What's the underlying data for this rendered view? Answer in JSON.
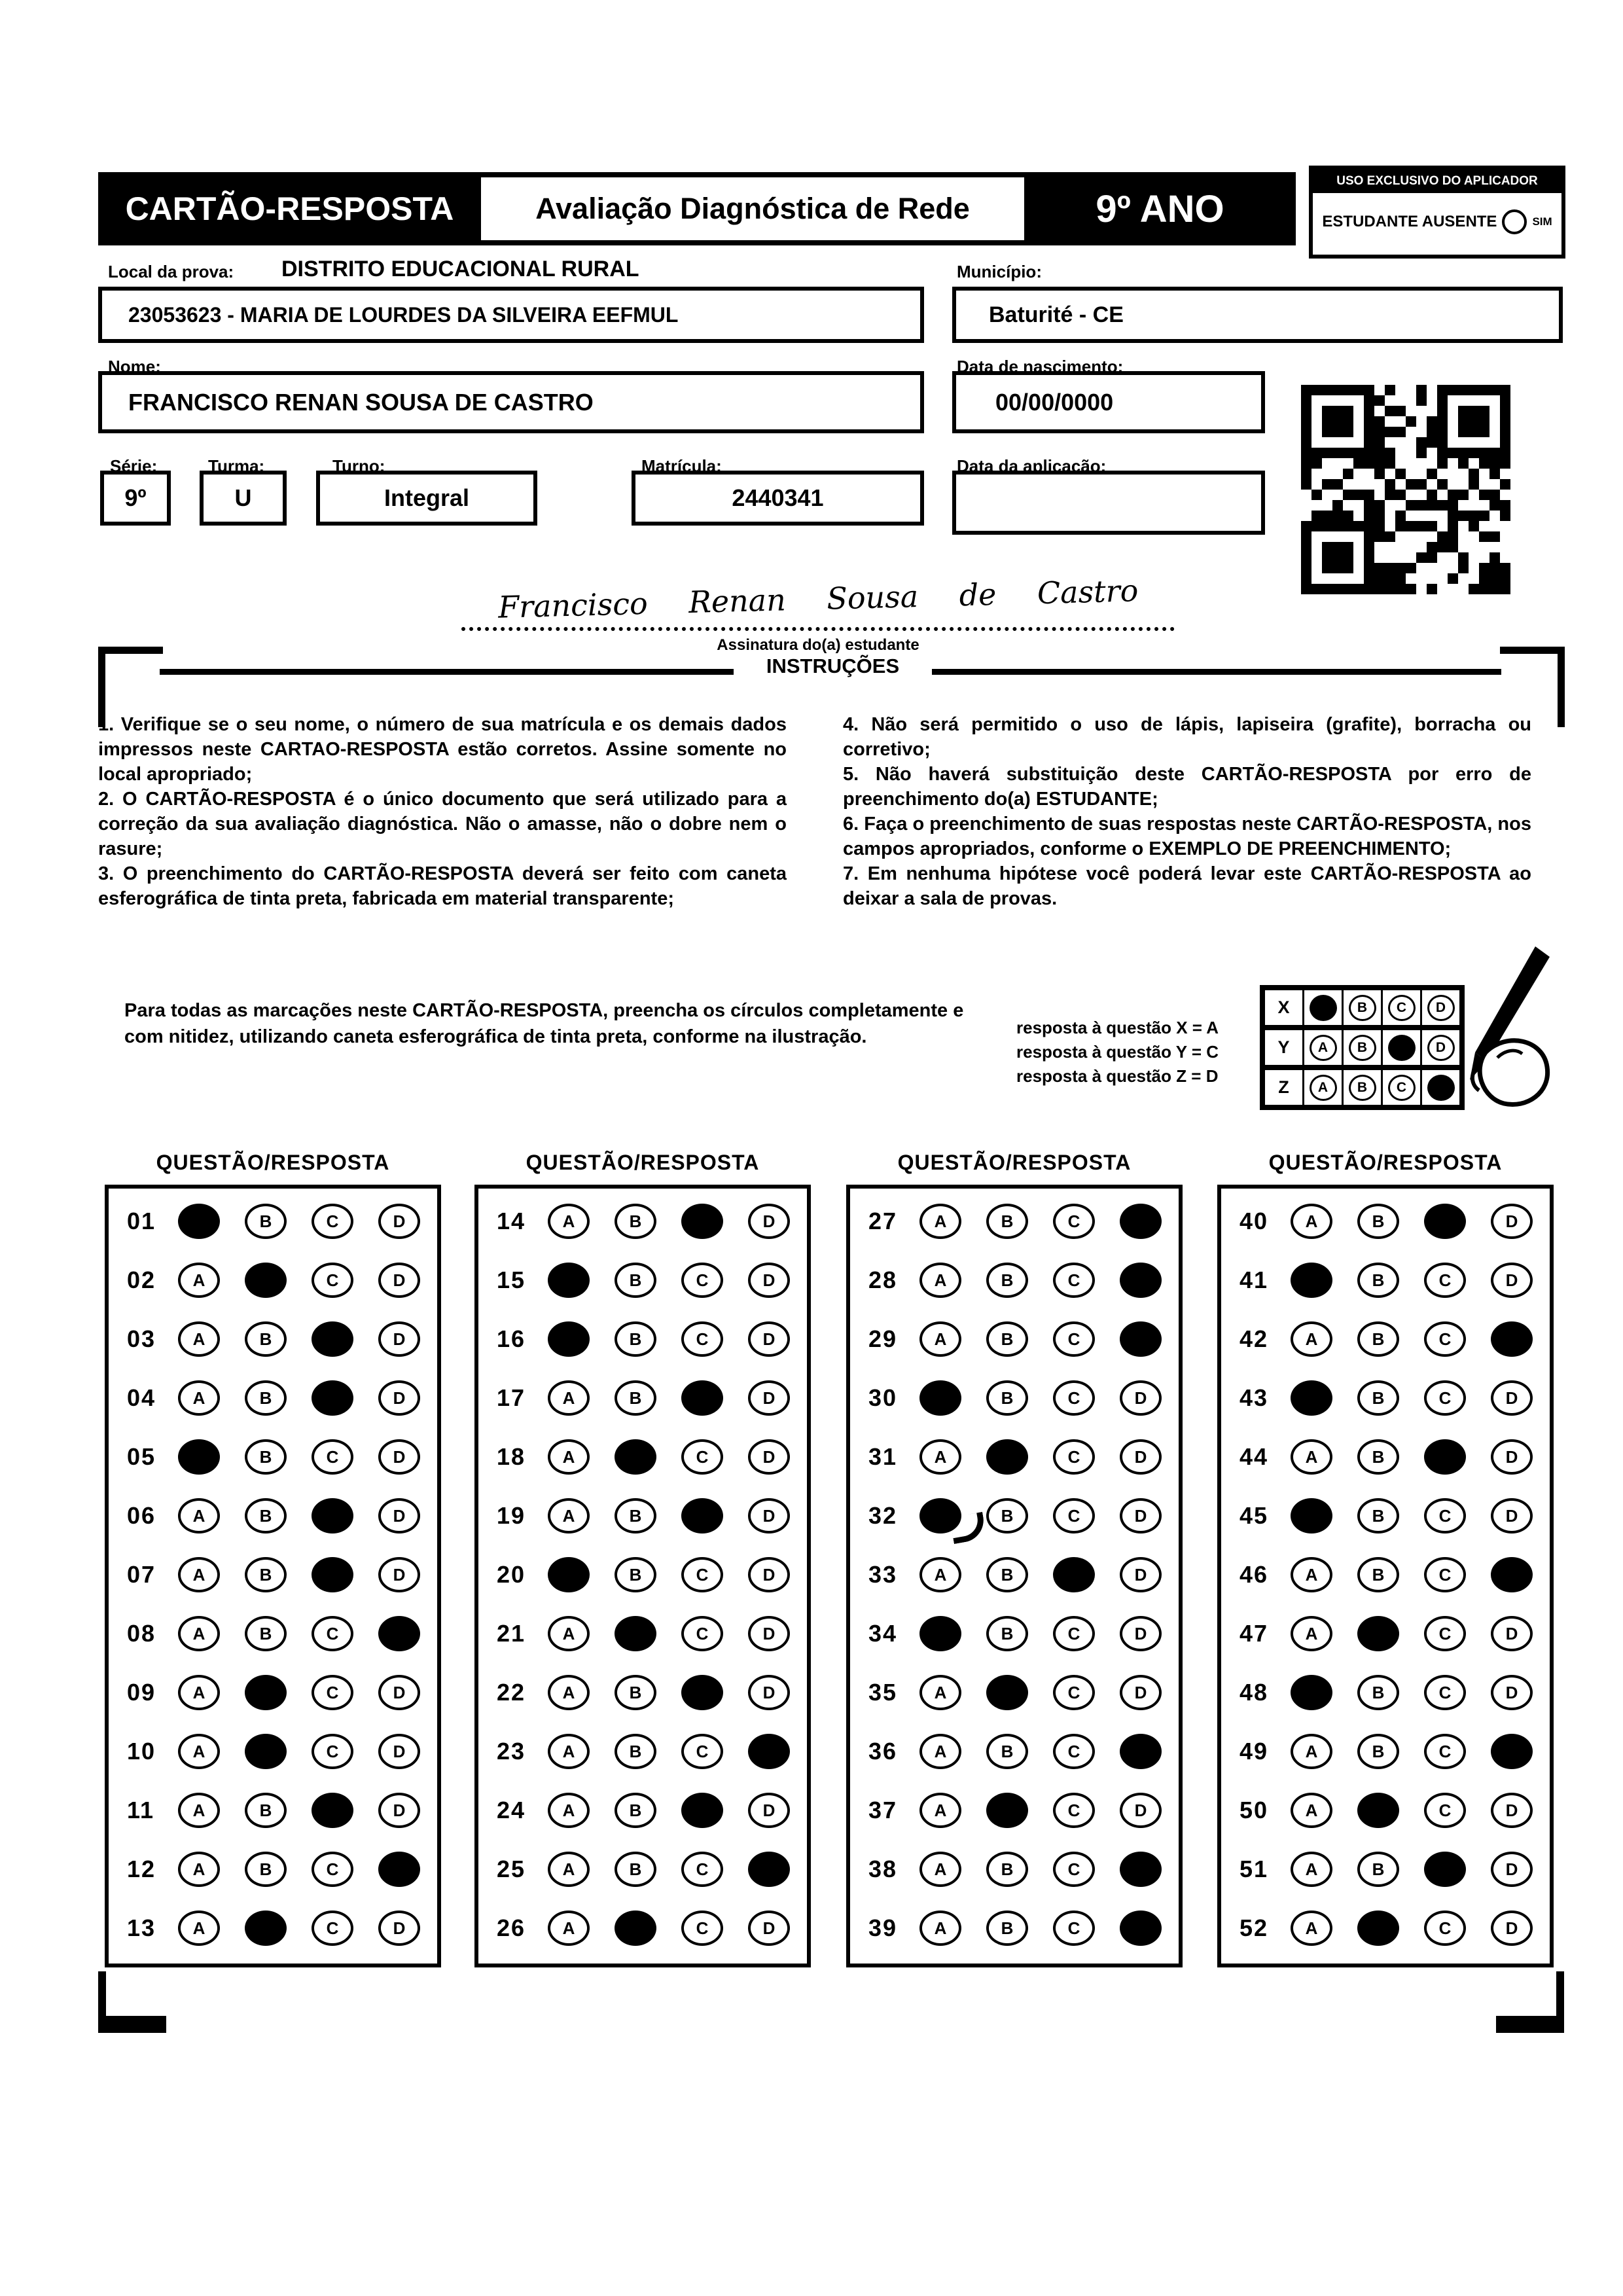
{
  "header": {
    "card_title": "CARTÃO-RESPOSTA",
    "exam_title": "Avaliação Diagnóstica de Rede",
    "grade": "9º ANO",
    "examiner_box": {
      "title": "USO EXCLUSIVO DO APLICADOR",
      "absent_label": "ESTUDANTE AUSENTE",
      "absent_option": "SIM"
    }
  },
  "form": {
    "local_label": "Local da prova:",
    "local_value": "DISTRITO EDUCACIONAL RURAL",
    "school_value": "23053623 - MARIA DE LOURDES DA SILVEIRA EEFMUL",
    "municipio_label": "Município:",
    "municipio_value": "Baturité - CE",
    "nome_label": "Nome:",
    "nome_value": "FRANCISCO RENAN SOUSA DE CASTRO",
    "nascimento_label": "Data de nascimento:",
    "nascimento_value": "00/00/0000",
    "serie_label": "Série:",
    "serie_value": "9º",
    "turma_label": "Turma:",
    "turma_value": "U",
    "turno_label": "Turno:",
    "turno_value": "Integral",
    "matricula_label": "Matrícula:",
    "matricula_value": "2440341",
    "aplicacao_label": "Data da aplicação:",
    "aplicacao_value": "",
    "signature_script": "Francisco Renan Sousa de Castro",
    "signature_caption": "Assinatura do(a) estudante"
  },
  "instructions": {
    "title": "INSTRUÇÕES",
    "left": [
      "1. Verifique se o seu nome, o número de sua matrícula e os demais dados impressos neste CARTAO-RESPOSTA estão corretos. Assine somente no local apropriado;",
      "2. O CARTÃO-RESPOSTA é o único documento que será utilizado para a correção da sua avaliação diagnóstica. Não o amasse, não o dobre nem o rasure;",
      "3. O preenchimento do CARTÃO-RESPOSTA deverá ser feito com caneta esferográfica de tinta preta, fabricada em material transparente;"
    ],
    "right": [
      "4. Não será permitido o uso de lápis, lapiseira (grafite), borracha ou corretivo;",
      "5. Não haverá substituição deste CARTÃO-RESPOSTA por erro de preenchimento do(a) ESTUDANTE;",
      "6. Faça o preenchimento de suas respostas neste CARTÃO-RESPOSTA, nos campos apropriados, conforme o EXEMPLO DE PREENCHIMENTO;",
      "7. Em nenhuma hipótese você poderá levar este CARTÃO-RESPOSTA ao deixar a sala de provas."
    ]
  },
  "example": {
    "paragraph": "Para todas as marcações neste CARTÃO-RESPOSTA, preencha os círculos completamente e com nitidez, utilizando caneta esferográfica de tinta preta, conforme na ilustração.",
    "legend": [
      "resposta à questão X = A",
      "resposta à questão Y = C",
      "resposta à questão Z = D"
    ],
    "options": [
      "A",
      "B",
      "C",
      "D"
    ],
    "rows": [
      {
        "label": "X",
        "filled": "A"
      },
      {
        "label": "Y",
        "filled": "C"
      },
      {
        "label": "Z",
        "filled": "D"
      }
    ]
  },
  "answers": {
    "header": "QUESTÃO/RESPOSTA",
    "options": [
      "A",
      "B",
      "C",
      "D"
    ],
    "columns": [
      {
        "questions": [
          {
            "num": "01",
            "marked": "A"
          },
          {
            "num": "02",
            "marked": "B"
          },
          {
            "num": "03",
            "marked": "C"
          },
          {
            "num": "04",
            "marked": "C"
          },
          {
            "num": "05",
            "marked": "A"
          },
          {
            "num": "06",
            "marked": "C"
          },
          {
            "num": "07",
            "marked": "C"
          },
          {
            "num": "08",
            "marked": "D"
          },
          {
            "num": "09",
            "marked": "B"
          },
          {
            "num": "10",
            "marked": "B"
          },
          {
            "num": "11",
            "marked": "C"
          },
          {
            "num": "12",
            "marked": "D"
          },
          {
            "num": "13",
            "marked": "B"
          }
        ]
      },
      {
        "questions": [
          {
            "num": "14",
            "marked": "C"
          },
          {
            "num": "15",
            "marked": "A"
          },
          {
            "num": "16",
            "marked": "A"
          },
          {
            "num": "17",
            "marked": "C"
          },
          {
            "num": "18",
            "marked": "B"
          },
          {
            "num": "19",
            "marked": "C"
          },
          {
            "num": "20",
            "marked": "A"
          },
          {
            "num": "21",
            "marked": "B"
          },
          {
            "num": "22",
            "marked": "C"
          },
          {
            "num": "23",
            "marked": "D"
          },
          {
            "num": "24",
            "marked": "C"
          },
          {
            "num": "25",
            "marked": "D"
          },
          {
            "num": "26",
            "marked": "B"
          }
        ]
      },
      {
        "questions": [
          {
            "num": "27",
            "marked": "D"
          },
          {
            "num": "28",
            "marked": "D"
          },
          {
            "num": "29",
            "marked": "D"
          },
          {
            "num": "30",
            "marked": "A"
          },
          {
            "num": "31",
            "marked": "B"
          },
          {
            "num": "32",
            "marked": "A",
            "tail": true
          },
          {
            "num": "33",
            "marked": "C"
          },
          {
            "num": "34",
            "marked": "A"
          },
          {
            "num": "35",
            "marked": "B"
          },
          {
            "num": "36",
            "marked": "D"
          },
          {
            "num": "37",
            "marked": "B"
          },
          {
            "num": "38",
            "marked": "D"
          },
          {
            "num": "39",
            "marked": "D"
          }
        ]
      },
      {
        "questions": [
          {
            "num": "40",
            "marked": "C"
          },
          {
            "num": "41",
            "marked": "A"
          },
          {
            "num": "42",
            "marked": "D"
          },
          {
            "num": "43",
            "marked": "A"
          },
          {
            "num": "44",
            "marked": "C"
          },
          {
            "num": "45",
            "marked": "A"
          },
          {
            "num": "46",
            "marked": "D"
          },
          {
            "num": "47",
            "marked": "B"
          },
          {
            "num": "48",
            "marked": "A"
          },
          {
            "num": "49",
            "marked": "D"
          },
          {
            "num": "50",
            "marked": "B"
          },
          {
            "num": "51",
            "marked": "C"
          },
          {
            "num": "52",
            "marked": "B"
          }
        ]
      }
    ]
  },
  "colors": {
    "ink": "#000000",
    "paper": "#ffffff"
  }
}
